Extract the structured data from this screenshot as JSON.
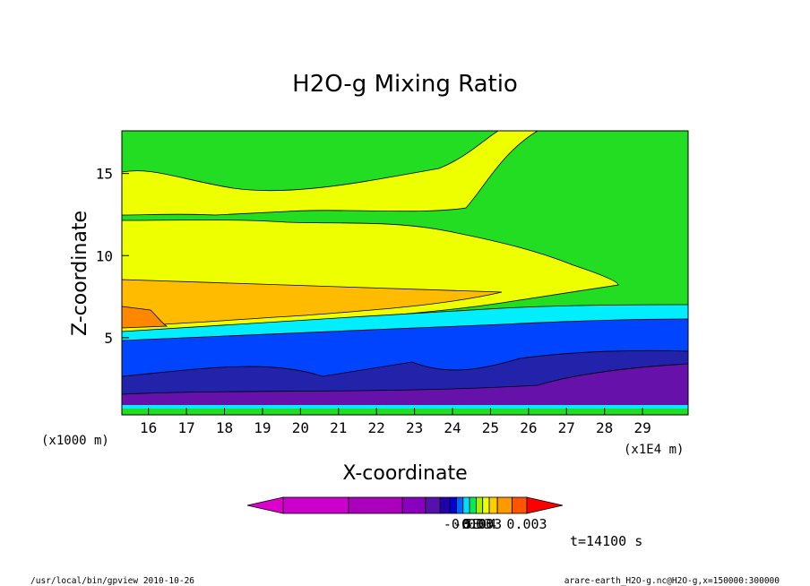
{
  "chart_data": {
    "type": "heatmap",
    "title": "H2O-g Mixing Ratio",
    "xlabel": "X-coordinate",
    "ylabel": "Z-coordinate",
    "x_unit_left": "(x1000 m)",
    "x_unit_right": "(x1E4 m)",
    "x_ticks": [
      "16",
      "17",
      "18",
      "19",
      "20",
      "21",
      "22",
      "23",
      "24",
      "25",
      "26",
      "27",
      "28",
      "29"
    ],
    "y_ticks": [
      "5",
      "10",
      "15"
    ],
    "xlim": [
      15.3,
      30.2
    ],
    "ylim": [
      0.3,
      17.6
    ],
    "colorbar": {
      "colors": [
        "#cc00cc",
        "#aa00bb",
        "#8800bb",
        "#5511aa",
        "#2200aa",
        "#0000dd",
        "#0066ff",
        "#00ddff",
        "#00ee55",
        "#aaee00",
        "#eeff00",
        "#ffcc00",
        "#ff9900",
        "#ff5500",
        "#ff0000"
      ],
      "labels": [
        "-0.003",
        "-0.003",
        "0.0",
        "5E-4",
        "0.003"
      ]
    },
    "fields": [
      {
        "level": "green",
        "color": "#22dd22",
        "region": "upper"
      },
      {
        "level": "yellow",
        "color": "#eeff00",
        "region": "z 5.5-15"
      },
      {
        "level": "orange",
        "color": "#ffbb00",
        "region": "z 5.5-8.5"
      },
      {
        "level": "dark-orange",
        "color": "#ff8800",
        "region": "z 5.5-6.8"
      },
      {
        "level": "cyan",
        "color": "#00eeff",
        "region": "z 4.5-5.8"
      },
      {
        "level": "blue",
        "color": "#0044ff",
        "region": "z 1.5-5"
      },
      {
        "level": "navy",
        "color": "#2222aa",
        "region": "z 0.5-3"
      },
      {
        "level": "purple",
        "color": "#6611aa",
        "region": "z 0.5-2"
      }
    ]
  },
  "time_label": "t=14100 s",
  "footer_left": "/usr/local/bin/gpview  2010-10-26",
  "footer_right": "arare-earth_H2O-g.nc@H2O-g,x=150000:300000"
}
